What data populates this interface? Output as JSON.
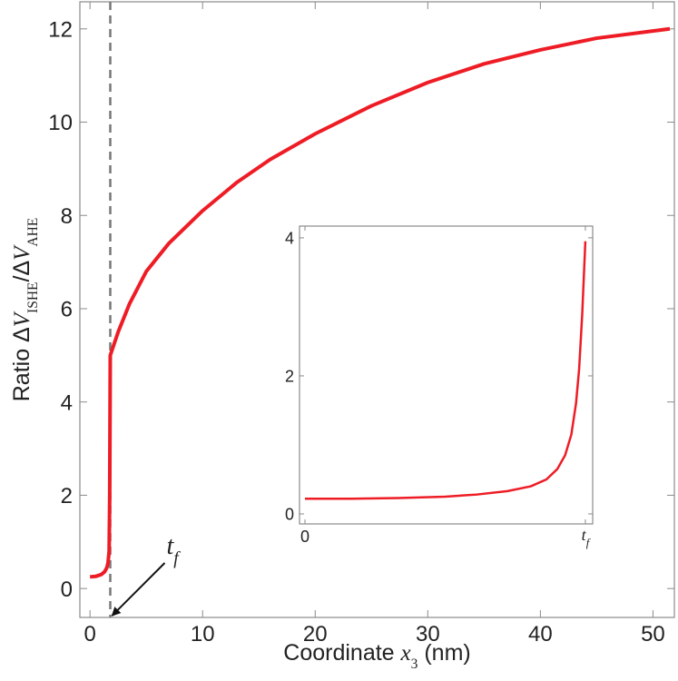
{
  "chart_data": [
    {
      "type": "line",
      "x_label": [
        {
          "text": "Coordinate  "
        },
        {
          "text": "x",
          "italic": true
        },
        {
          "text": "3",
          "sub": true
        },
        {
          "text": "  (nm)"
        }
      ],
      "y_label": [
        {
          "text": "Ratio  Δ"
        },
        {
          "text": "V",
          "italic": true
        },
        {
          "text": "ISHE",
          "sub": true
        },
        {
          "text": "/Δ"
        },
        {
          "text": "V",
          "italic": true
        },
        {
          "text": "AHE",
          "sub": true
        }
      ],
      "xlim": [
        -0.9,
        51.9
      ],
      "ylim": [
        -0.62,
        12.58
      ],
      "xticks": [
        0,
        10,
        20,
        30,
        40,
        50
      ],
      "yticks": [
        0,
        2,
        4,
        6,
        8,
        10,
        12
      ],
      "vline": {
        "x": 1.8,
        "color": "#777777",
        "dashed": true
      },
      "annotation": {
        "text": "t",
        "subscript": "f",
        "x": 1.8
      },
      "series": [
        {
          "color": "#ee1c25",
          "x": [
            0,
            0.5,
            1.0,
            1.3,
            1.5,
            1.6,
            1.7,
            1.75,
            1.8,
            2.5,
            3.5,
            5,
            7,
            10,
            13,
            16,
            20,
            25,
            30,
            35,
            40,
            45,
            51.5
          ],
          "values": [
            0.25,
            0.26,
            0.3,
            0.36,
            0.45,
            0.55,
            0.8,
            2.0,
            5.0,
            5.5,
            6.1,
            6.8,
            7.4,
            8.1,
            8.7,
            9.2,
            9.75,
            10.35,
            10.85,
            11.25,
            11.55,
            11.8,
            12.0
          ]
        }
      ]
    },
    {
      "type": "line",
      "xlim": [
        -0.035,
        1.847
      ],
      "ylim": [
        -0.145,
        4.17
      ],
      "xticks": [
        0,
        {
          "value": 1.8,
          "label": "t",
          "subscript": "f"
        }
      ],
      "yticks": [
        0,
        2,
        4
      ],
      "series": [
        {
          "color": "#ee1c25",
          "x": [
            0,
            0.3,
            0.6,
            0.9,
            1.1,
            1.3,
            1.45,
            1.55,
            1.62,
            1.67,
            1.71,
            1.74,
            1.76,
            1.78,
            1.8
          ],
          "values": [
            0.22,
            0.22,
            0.23,
            0.25,
            0.28,
            0.33,
            0.4,
            0.5,
            0.65,
            0.85,
            1.15,
            1.6,
            2.1,
            2.9,
            3.95
          ]
        }
      ]
    }
  ]
}
